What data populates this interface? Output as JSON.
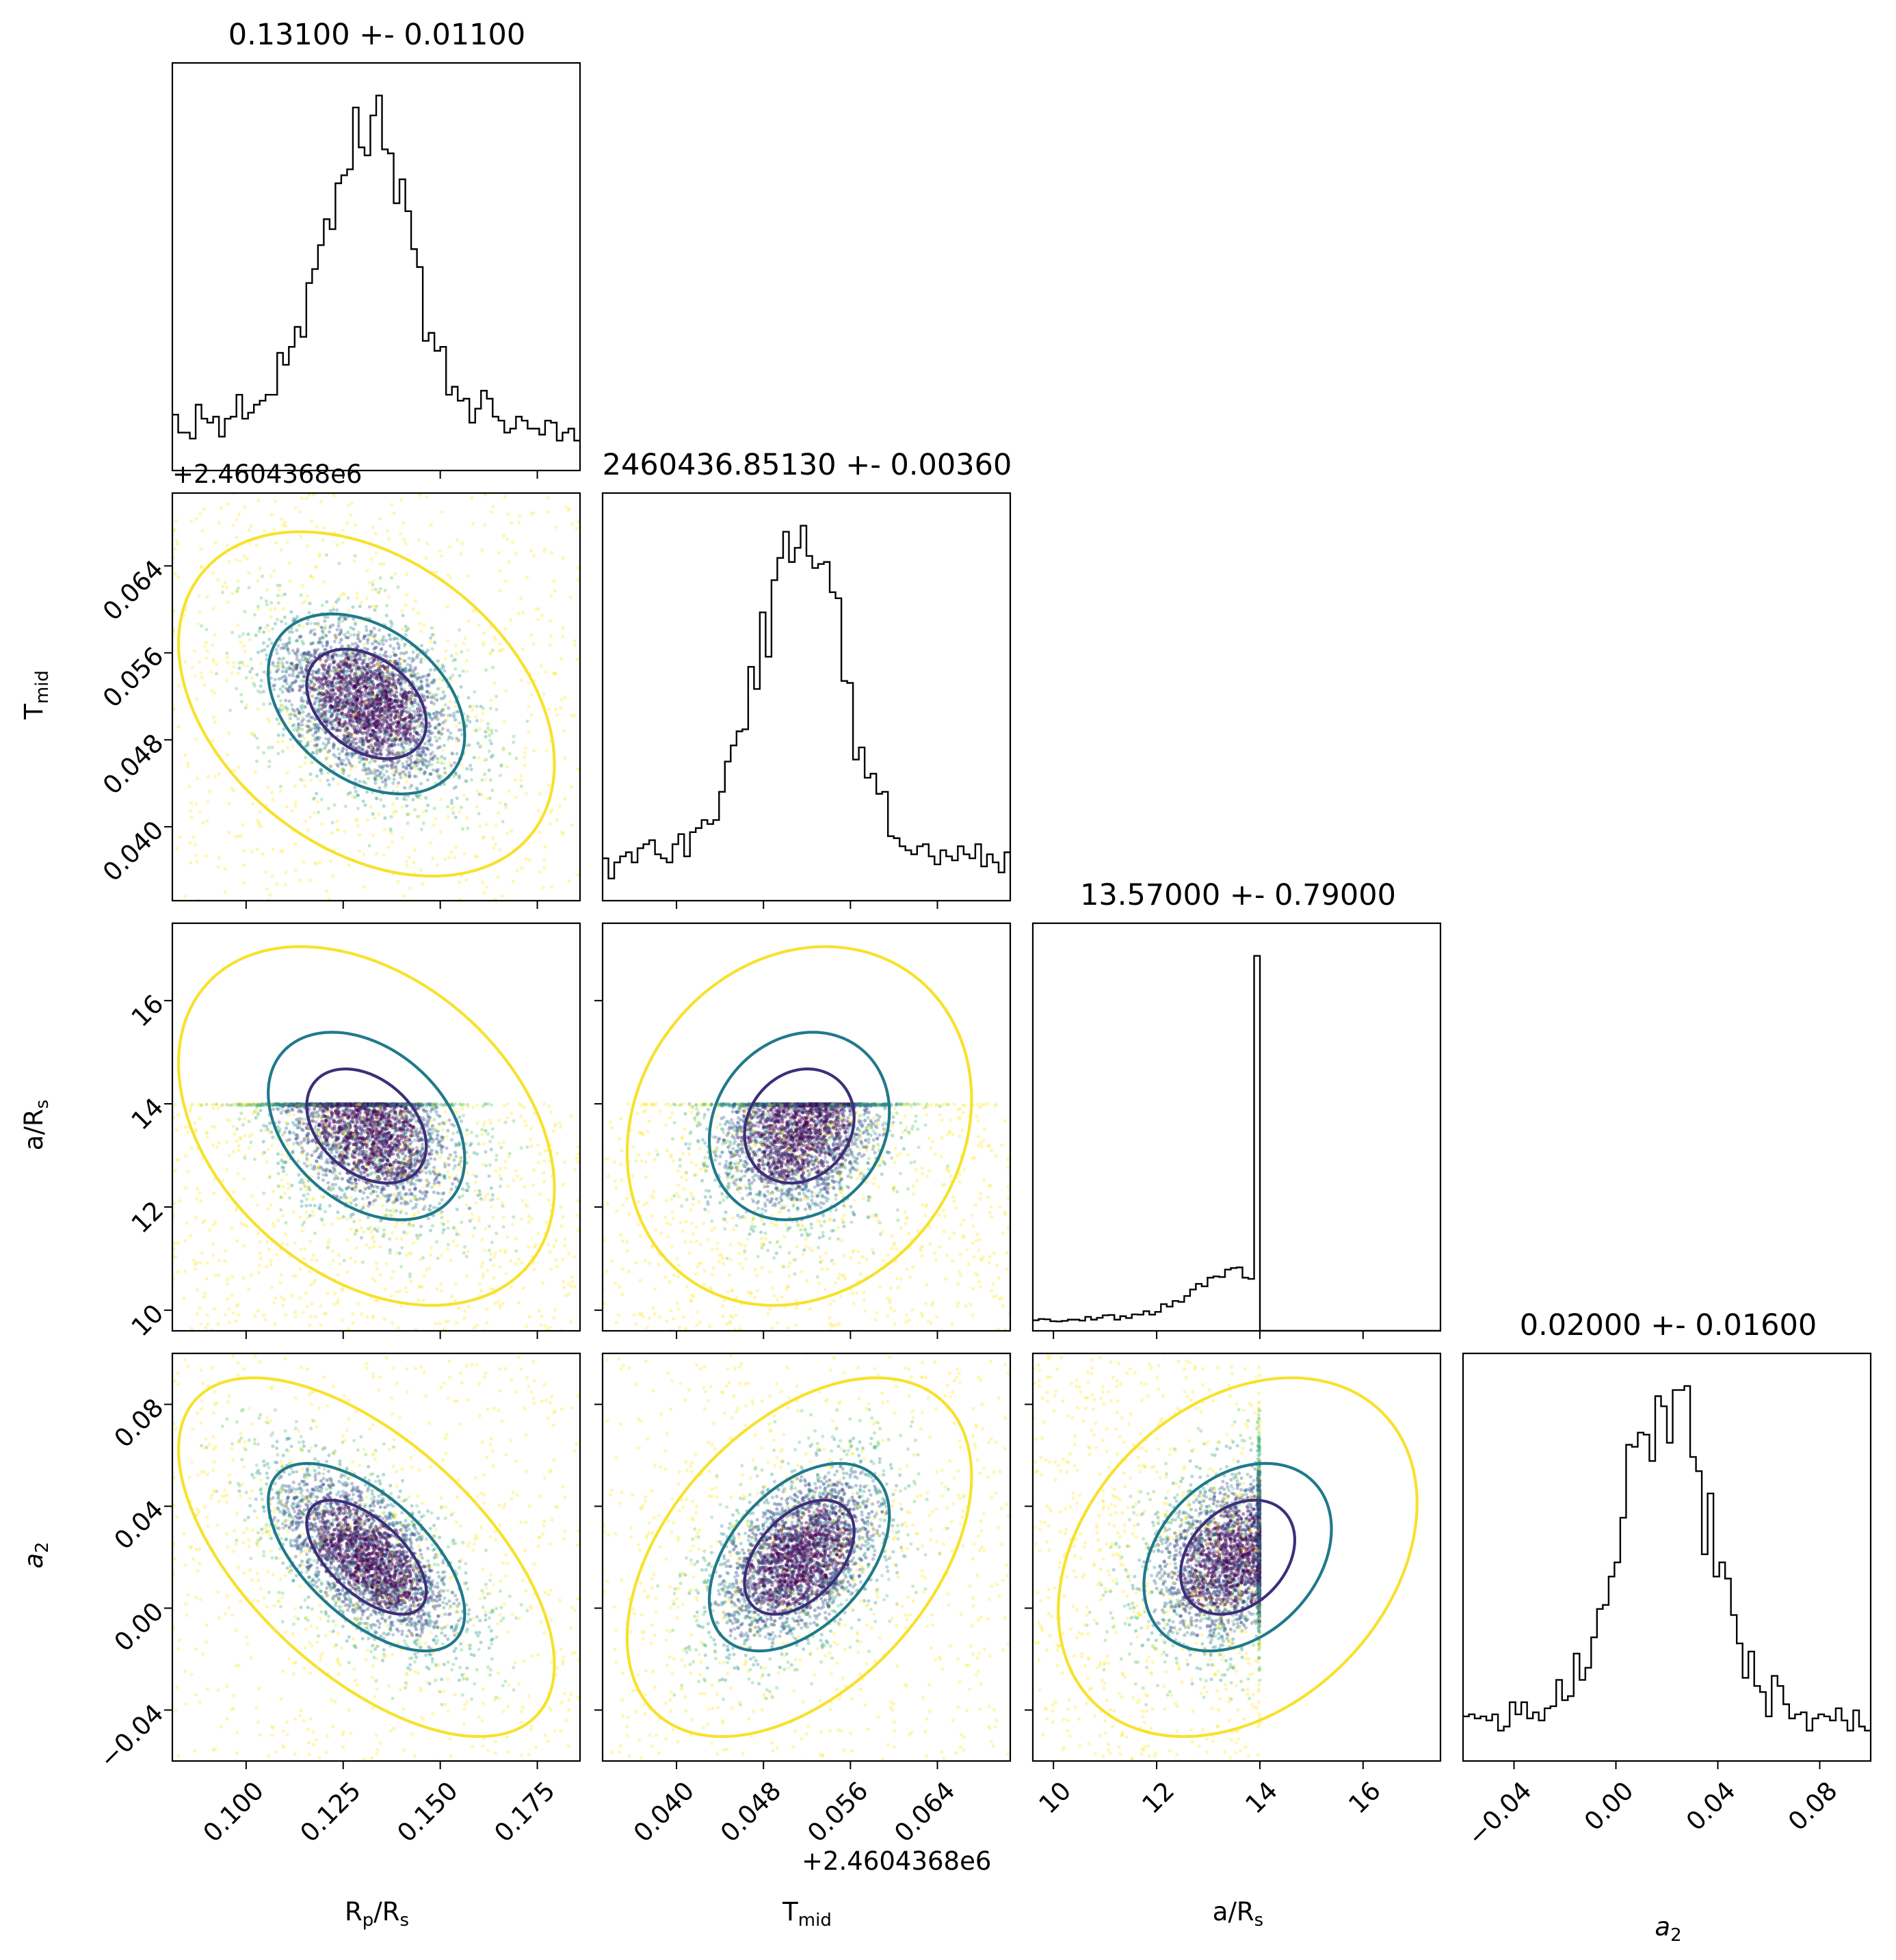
{
  "chart_data": {
    "type": "scatter",
    "subtype": "corner-plot",
    "parameters": [
      {
        "key": "rp",
        "label": "R_p/R_s",
        "range": [
          0.081,
          0.186
        ],
        "ticks": [
          0.1,
          0.125,
          0.15,
          0.175
        ],
        "tick_labels": [
          "0.100",
          "0.125",
          "0.150",
          "0.175"
        ],
        "offset_label": "",
        "title": "0.13100 +- 0.01100",
        "center": 0.131,
        "sigma": 0.011
      },
      {
        "key": "tmid",
        "label": "T_mid",
        "range": [
          0.0332,
          0.0707
        ],
        "ticks": [
          0.04,
          0.048,
          0.056,
          0.064
        ],
        "tick_labels": [
          "0.040",
          "0.048",
          "0.056",
          "0.064"
        ],
        "offset_label": "+2.4604368e6",
        "title": "2460436.85130 +- 0.00360",
        "center": 0.0513,
        "sigma": 0.0036
      },
      {
        "key": "ars",
        "label": "a/R_s",
        "range": [
          9.6,
          17.5
        ],
        "ticks": [
          10,
          12,
          14,
          16
        ],
        "tick_labels": [
          "10",
          "12",
          "14",
          "16"
        ],
        "offset_label": "",
        "title": "13.57000 +- 0.79000",
        "center": 13.57,
        "sigma": 0.79,
        "upper_bound": 14.0
      },
      {
        "key": "a2",
        "label": "a_2",
        "range": [
          -0.06,
          0.1
        ],
        "ticks": [
          -0.04,
          0.0,
          0.04,
          0.08
        ],
        "tick_labels": [
          "−0.04",
          "0.00",
          "0.04",
          "0.08"
        ],
        "offset_label": "",
        "title": "0.02000 +- 0.01600",
        "center": 0.02,
        "sigma": 0.016
      }
    ],
    "contour_levels": [
      "1-sigma",
      "2-sigma",
      "3-sigma"
    ],
    "contour_colors": [
      "#3b2f78",
      "#21798b",
      "#f7e12d"
    ],
    "point_colormap": [
      "#440154",
      "#3b528b",
      "#21918c",
      "#5ec962",
      "#fde725"
    ],
    "grid": false,
    "legend": "none"
  },
  "labels": {
    "x_rp": "R",
    "x_rp_sub": "p",
    "x_rp_tail": "/R",
    "x_rp_tail_sub": "s",
    "x_tmid": "T",
    "x_tmid_sub": "mid",
    "x_ars": "a/R",
    "x_ars_sub": "s",
    "x_a2": "a",
    "x_a2_sub": "2",
    "y_tmid": "T",
    "y_tmid_sub": "mid",
    "y_ars": "a/R",
    "y_ars_sub": "s",
    "y_a2": "a",
    "y_a2_sub": "2"
  },
  "titles": {
    "rp": "0.13100 +- 0.01100",
    "tmid": "2460436.85130 +- 0.00360",
    "ars": "13.57000 +- 0.79000",
    "a2": "0.02000 +- 0.01600"
  },
  "offsets": {
    "top_hist": "+2.4604368e6",
    "tmid_x": "+2.4604368e6"
  }
}
